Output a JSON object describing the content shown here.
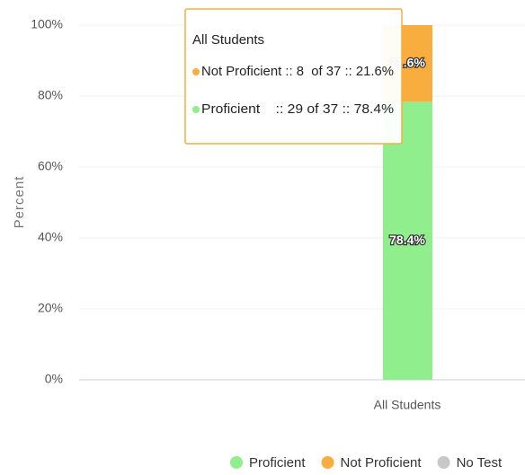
{
  "chart_data": {
    "type": "stacked_bar",
    "y_label": "Percent",
    "categories": [
      "All Students"
    ],
    "series": [
      {
        "name": "Proficient",
        "color": "#90ee8c",
        "values": [
          78.4
        ],
        "value_labels": [
          "78.4%"
        ]
      },
      {
        "name": "Not Proficient",
        "color": "#f9ad3e",
        "values": [
          21.6
        ],
        "value_labels": [
          "21.6%"
        ]
      },
      {
        "name": "No Test",
        "color": "#c8c8c8",
        "values": [
          0
        ]
      }
    ],
    "ylim": [
      0,
      100
    ],
    "yticks": [
      {
        "value": 0,
        "label": "0%"
      },
      {
        "value": 20,
        "label": "20%"
      },
      {
        "value": 40,
        "label": "40%"
      },
      {
        "value": 60,
        "label": "60%"
      },
      {
        "value": 80,
        "label": "80%"
      },
      {
        "value": 100,
        "label": "100%"
      }
    ],
    "grid": true,
    "legend": "bottom",
    "tooltip": {
      "title": "All Students",
      "lines": [
        {
          "text": "Not Proficient :: 8  of 37 :: 21.6%",
          "color": "#f9ad3e"
        },
        {
          "text": "Proficient    :: 29 of 37 :: 78.4%",
          "color": "#90ee8c"
        }
      ]
    }
  }
}
